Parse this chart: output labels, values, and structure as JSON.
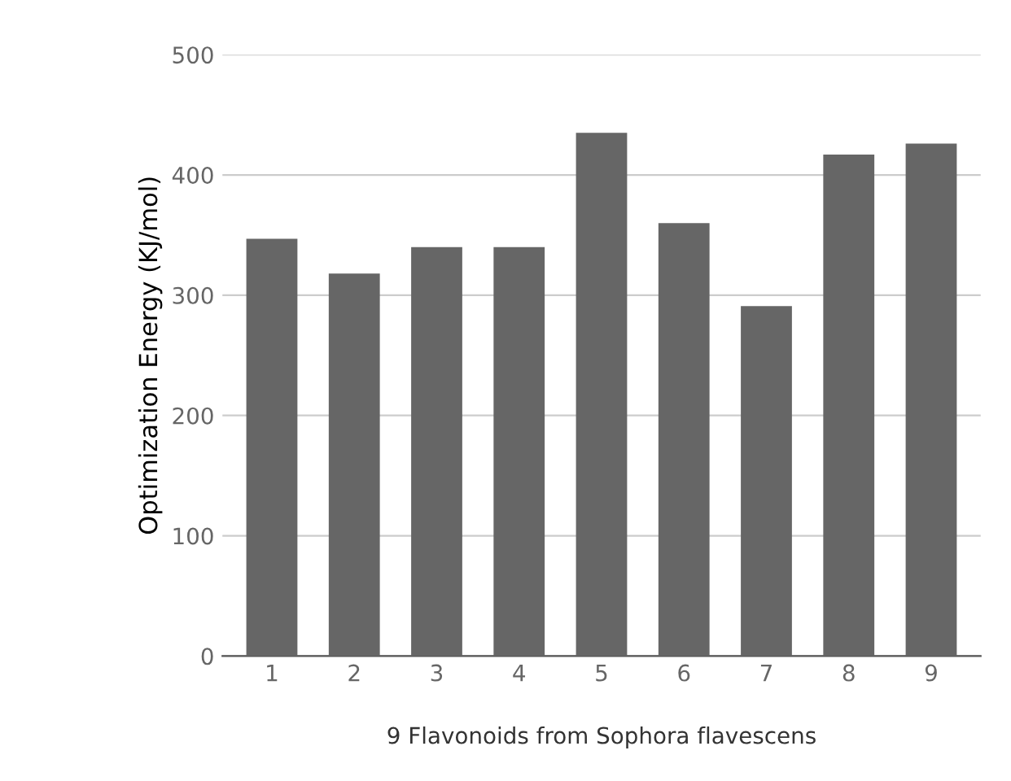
{
  "chart_data": {
    "type": "bar",
    "xlabel": "9 Flavonoids from Sophora flavescens",
    "ylabel": "Optimization Energy (KJ/mol)",
    "categories": [
      "1",
      "2",
      "3",
      "4",
      "5",
      "6",
      "7",
      "8",
      "9"
    ],
    "values": [
      347,
      318,
      340,
      340,
      435,
      360,
      291,
      417,
      426
    ],
    "color": "#666666",
    "ylim": [
      0,
      500
    ],
    "yticks": [
      0,
      100,
      200,
      300,
      400,
      500
    ],
    "grid": "y"
  }
}
